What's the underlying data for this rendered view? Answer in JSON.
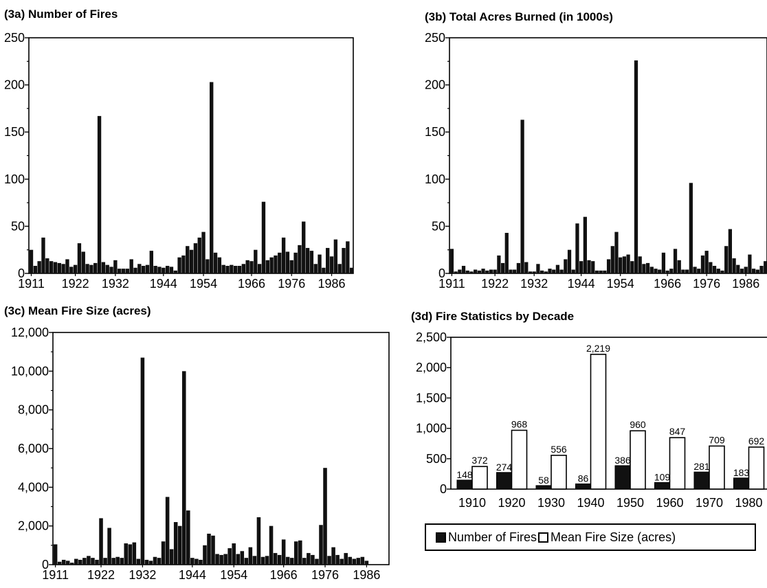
{
  "colors": {
    "bar": "#111111",
    "axis": "#000000",
    "white": "#ffffff"
  },
  "years_axis_ticks": [
    "1911",
    "1922",
    "1932",
    "1944",
    "1954",
    "1966",
    "1976",
    "1986"
  ],
  "chart_data": [
    {
      "id": "a",
      "type": "bar",
      "title": "(3a) Number of Fires",
      "xlabel": "",
      "ylabel": "",
      "ylim": [
        0,
        250
      ],
      "y_ticks": [
        "0",
        "50",
        "100",
        "150",
        "200",
        "250"
      ],
      "x_tick_labels": [
        "1911",
        "1922",
        "1932",
        "1944",
        "1954",
        "1966",
        "1976",
        "1986"
      ],
      "x_start": 1911,
      "x_end": 1990,
      "values": [
        25,
        8,
        13,
        38,
        16,
        13,
        12,
        11,
        10,
        15,
        7,
        9,
        32,
        23,
        10,
        9,
        11,
        167,
        12,
        9,
        7,
        14,
        5,
        5,
        5,
        15,
        6,
        10,
        8,
        9,
        24,
        8,
        7,
        6,
        8,
        7,
        3,
        17,
        19,
        29,
        25,
        32,
        38,
        44,
        15,
        203,
        22,
        17,
        9,
        8,
        9,
        8,
        8,
        10,
        14,
        13,
        25,
        10,
        76,
        14,
        17,
        19,
        22,
        38,
        23,
        14,
        22,
        30,
        55,
        27,
        24,
        10,
        20,
        6,
        27,
        18,
        36,
        10,
        27,
        34,
        6
      ]
    },
    {
      "id": "b",
      "type": "bar",
      "title": "(3b) Total Acres Burned (in 1000s)",
      "xlabel": "",
      "ylabel": "",
      "ylim": [
        0,
        250
      ],
      "y_ticks": [
        "0",
        "50",
        "100",
        "150",
        "200",
        "250"
      ],
      "x_tick_labels": [
        "1911",
        "1922",
        "1932",
        "1944",
        "1954",
        "1966",
        "1976",
        "1986"
      ],
      "x_start": 1911,
      "x_end": 1990,
      "values": [
        26,
        2,
        4,
        8,
        3,
        2,
        4,
        3,
        5,
        3,
        4,
        4,
        19,
        11,
        43,
        4,
        4,
        11,
        163,
        12,
        2,
        2,
        10,
        3,
        2,
        5,
        4,
        9,
        4,
        15,
        25,
        4,
        53,
        13,
        60,
        14,
        13,
        3,
        3,
        3,
        15,
        29,
        44,
        17,
        18,
        20,
        13,
        226,
        18,
        10,
        11,
        7,
        5,
        4,
        22,
        3,
        5,
        26,
        14,
        4,
        4,
        96,
        7,
        5,
        19,
        24,
        12,
        8,
        5,
        3,
        29,
        47,
        16,
        9,
        5,
        7,
        20,
        5,
        4,
        8,
        13
      ]
    },
    {
      "id": "c",
      "type": "bar",
      "title": "(3c) Mean Fire Size (acres)",
      "xlabel": "",
      "ylabel": "",
      "ylim": [
        0,
        12000
      ],
      "y_ticks": [
        "0",
        "2,000",
        "4,000",
        "6,000",
        "8,000",
        "10,000",
        "12,000"
      ],
      "x_tick_labels": [
        "1911",
        "1922",
        "1932",
        "1944",
        "1954",
        "1966",
        "1976",
        "1986"
      ],
      "x_start": 1911,
      "x_end": 1990,
      "values": [
        1050,
        150,
        250,
        200,
        100,
        300,
        250,
        350,
        450,
        350,
        250,
        2400,
        350,
        1900,
        350,
        400,
        350,
        1100,
        1050,
        1150,
        300,
        10700,
        250,
        200,
        400,
        350,
        1200,
        3500,
        800,
        2200,
        2000,
        10000,
        2800,
        350,
        300,
        250,
        1000,
        1600,
        1500,
        550,
        500,
        550,
        850,
        1100,
        550,
        700,
        350,
        900,
        450,
        2450,
        400,
        450,
        2000,
        600,
        500,
        1300,
        400,
        350,
        1200,
        1250,
        350,
        600,
        500,
        300,
        2050,
        5000,
        450,
        900,
        500,
        300,
        600,
        400,
        300,
        350,
        400,
        200
      ]
    },
    {
      "id": "d",
      "type": "bar",
      "title": "(3d) Fire Statistics by Decade",
      "xlabel": "",
      "ylabel": "",
      "ylim": [
        0,
        2500
      ],
      "y_ticks": [
        "0",
        "500",
        "1,000",
        "1,500",
        "2,000",
        "2,500"
      ],
      "categories": [
        "1910",
        "1920",
        "1930",
        "1940",
        "1950",
        "1960",
        "1970",
        "1980"
      ],
      "series": [
        {
          "name": "Number of Fires",
          "values": [
            148,
            274,
            58,
            86,
            386,
            109,
            281,
            183
          ],
          "labels": [
            "148",
            "274",
            "58",
            "86",
            "386",
            "109",
            "281",
            "183"
          ]
        },
        {
          "name": "Mean Fire Size (acres)",
          "values": [
            372,
            968,
            556,
            2219,
            960,
            847,
            709,
            692
          ],
          "labels": [
            "372",
            "968",
            "556",
            "2,219",
            "960",
            "847",
            "709",
            "692"
          ]
        }
      ],
      "legend": "bottom"
    }
  ],
  "legend": {
    "item1": "Number of Fires",
    "item2": "Mean Fire Size (acres)"
  }
}
